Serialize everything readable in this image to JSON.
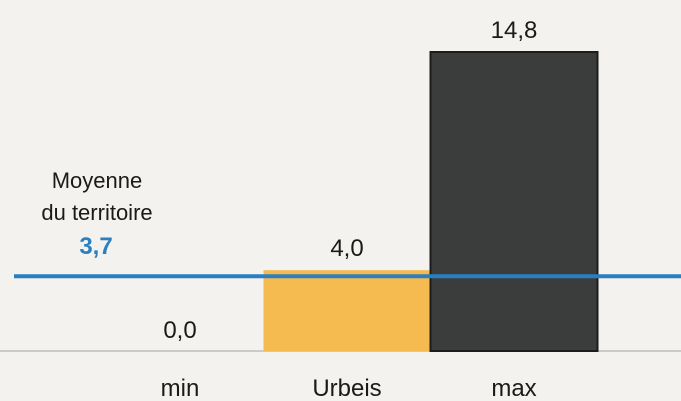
{
  "chart_data": {
    "type": "bar",
    "categories": [
      "min",
      "Urbeis",
      "max"
    ],
    "values": [
      0.0,
      4.0,
      14.8
    ],
    "value_labels": [
      "0,0",
      "4,0",
      "14,8"
    ],
    "title": "",
    "xlabel": "",
    "ylabel": "",
    "ylim": [
      0,
      14.8
    ],
    "grid": false,
    "legend": "none",
    "reference_line": {
      "label_line1": "Moyenne",
      "label_line2": "du territoire",
      "value": 3.7,
      "value_label": "3,7",
      "color": "#2a7fc1"
    },
    "colors": {
      "urbeis_bar": "#f5bb50",
      "max_bar": "#3b3d3c",
      "baseline": "#bdbdbd"
    }
  }
}
